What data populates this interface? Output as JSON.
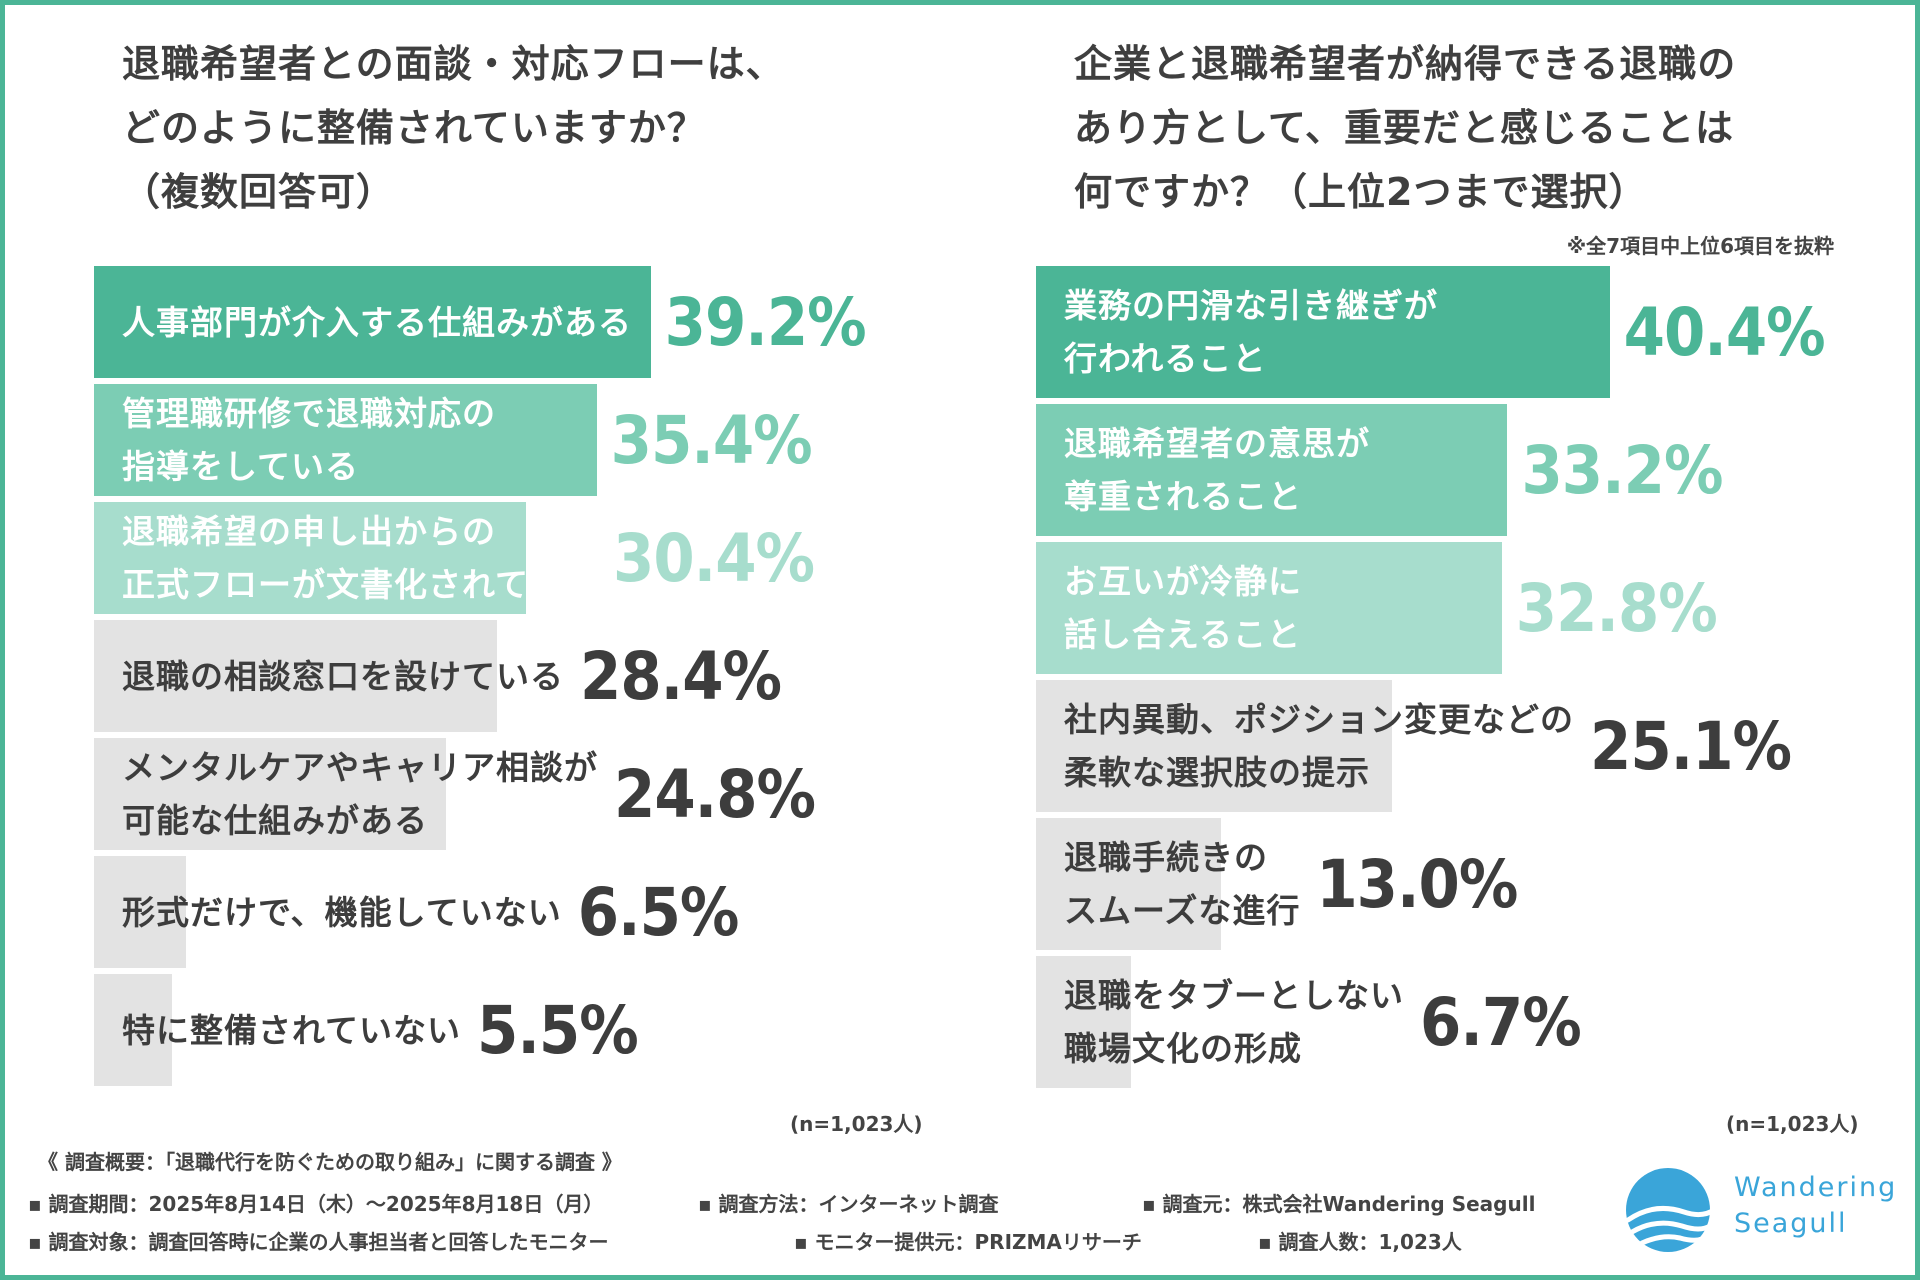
{
  "colors": {
    "frame": "#4bb596",
    "teal_dark": "#4bb596",
    "teal_mid": "#7ccdb4",
    "teal_light": "#a7ddcd",
    "gray_bar": "#e3e3e3",
    "text_dark": "#3d3d3d",
    "logo_blue": "#3aa5d9"
  },
  "left_title": "退職希望者との面談・対応フローは、\nどのように整備されていますか？\n（複数回答可）",
  "right_title": "企業と退職希望者が納得できる退職の\nあり方として、重要だと感じることは\n何ですか？（上位2つまで選択）",
  "right_note": "※全7項目中上位6項目を抜粋",
  "chart_data": [
    {
      "type": "bar",
      "orientation": "horizontal",
      "title": "退職希望者との面談・対応フローは、どのように整備されていますか？（複数回答可）",
      "categories": [
        "人事部門が介入する仕組みがある",
        "管理職研修で退職対応の\n指導をしている",
        "退職希望の申し出からの\n正式フローが文書化されている",
        "退職の相談窓口を設けている",
        "メンタルケアやキャリア相談が\n可能な仕組みがある",
        "形式だけで、機能していない",
        "特に整備されていない"
      ],
      "values": [
        39.2,
        35.4,
        30.4,
        28.4,
        24.8,
        6.5,
        5.5
      ],
      "value_labels": [
        "39.2%",
        "35.4%",
        "30.4%",
        "28.4%",
        "24.8%",
        "6.5%",
        "5.5%"
      ],
      "unit": "%",
      "n_label": "(n=1,023人)"
    },
    {
      "type": "bar",
      "orientation": "horizontal",
      "title": "企業と退職希望者が納得できる退職のあり方として、重要だと感じることは何ですか？（上位2つまで選択）",
      "categories": [
        "業務の円滑な引き継ぎが\n行われること",
        "退職希望者の意思が\n尊重されること",
        "お互いが冷静に\n話し合えること",
        "社内異動、ポジション変更などの\n柔軟な選択肢の提示",
        "退職手続きの\nスムーズな進行",
        "退職をタブーとしない\n職場文化の形成"
      ],
      "values": [
        40.4,
        33.2,
        32.8,
        25.1,
        13.0,
        6.7
      ],
      "value_labels": [
        "40.4%",
        "33.2%",
        "32.8%",
        "25.1%",
        "13.0%",
        "6.7%"
      ],
      "unit": "%",
      "n_label": "(n=1,023人)"
    }
  ],
  "survey": {
    "heading": "《 調査概要：「退職代行を防ぐための取り組み」に関する調査 》",
    "period": "▪ 調査期間：2025年8月14日（木）〜2025年8月18日（月）",
    "method": "▪ 調査方法：インターネット調査",
    "source": "▪ 調査元：株式会社Wandering Seagull",
    "target": "▪ 調査対象：調査回答時に企業の人事担当者と回答したモニター",
    "provider": "▪ モニター提供元：PRIZMAリサーチ",
    "count": "▪ 調査人数：1,023人"
  },
  "logo_text": "Wandering\nSeagull"
}
